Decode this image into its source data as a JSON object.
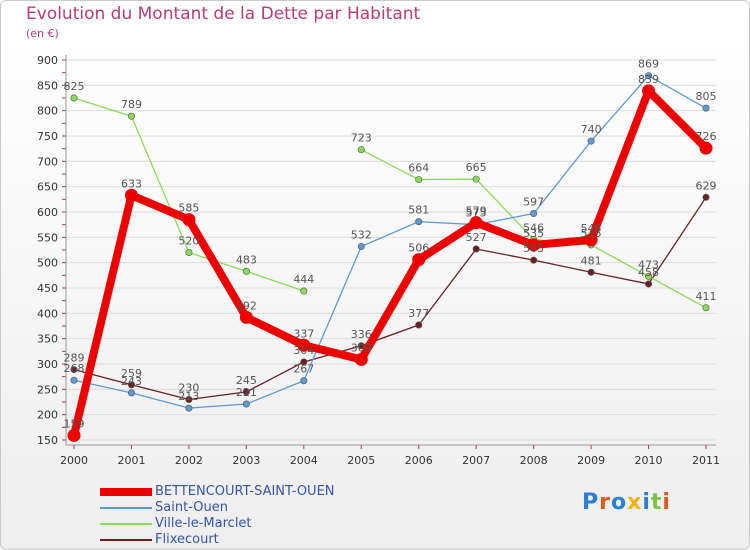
{
  "title": "Evolution du Montant de la Dette par Habitant",
  "subtitle": "(en €)",
  "logo": "Proxiti",
  "colors": {
    "title": "#b83c75",
    "legend_text": "#3355aa",
    "axis": "#999999",
    "grid": "#dddddd",
    "label": "#555555"
  },
  "chart_data": {
    "type": "line",
    "title": "Evolution du Montant de la Dette par Habitant",
    "subtitle": "(en €)",
    "xlabel": "",
    "ylabel": "",
    "x": [
      "2000",
      "2001",
      "2002",
      "2003",
      "2004",
      "2005",
      "2006",
      "2007",
      "2008",
      "2009",
      "2010",
      "2011"
    ],
    "ylim": [
      150,
      900
    ],
    "yticks": [
      "150",
      "200",
      "250",
      "300",
      "350",
      "400",
      "450",
      "500",
      "550",
      "600",
      "650",
      "700",
      "750",
      "800",
      "850",
      "900"
    ],
    "grid": true,
    "legend_position": "bottom",
    "series": [
      {
        "name": "BETTENCOURT-SAINT-OUEN",
        "color": "#ee0000",
        "values": [
          159,
          633,
          585,
          392,
          337,
          309,
          506,
          579,
          535,
          545,
          839,
          726
        ],
        "labels": [
          "159",
          "633",
          "585",
          "392",
          "337",
          "309",
          "506",
          "579",
          "535",
          "545",
          "839",
          "726"
        ]
      },
      {
        "name": "Saint-Ouen",
        "color": "#5b9bd5",
        "values": [
          268,
          243,
          213,
          221,
          267,
          532,
          581,
          575,
          597,
          740,
          869,
          805
        ],
        "labels": [
          "268",
          "243",
          "213",
          "221",
          "267",
          "532",
          "581",
          "575",
          "597",
          "740",
          "869",
          "805"
        ]
      },
      {
        "name": "Ville-le-Marclet",
        "color": "#88dd55",
        "values": [
          825,
          789,
          520,
          483,
          444,
          723,
          664,
          665,
          546,
          535,
          473,
          411
        ],
        "labels": [
          "825",
          "789",
          "520",
          "483",
          "444",
          "723",
          "664",
          "665",
          "546",
          "535",
          "473",
          "411"
        ]
      },
      {
        "name": "Flixecourt",
        "color": "#6b2020",
        "values": [
          289,
          259,
          230,
          245,
          304,
          336,
          377,
          527,
          505,
          481,
          458,
          629
        ],
        "labels": [
          "289",
          "259",
          "230",
          "245",
          "304",
          "336",
          "377",
          "527",
          "505",
          "481",
          "458",
          "629"
        ]
      }
    ]
  }
}
